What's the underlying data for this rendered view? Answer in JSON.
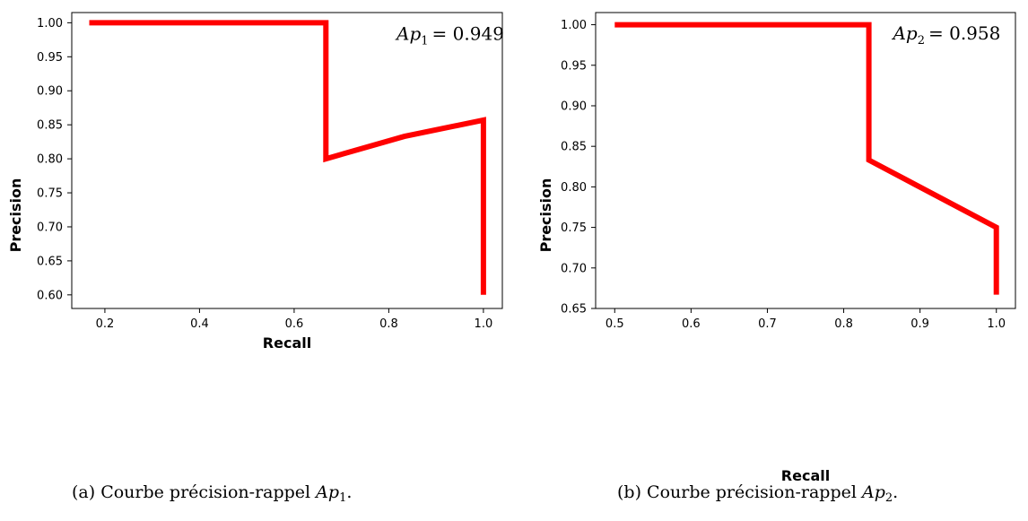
{
  "chart_data": [
    {
      "type": "line",
      "xlabel": "Recall",
      "ylabel": "Precision",
      "xlim": [
        0.13,
        1.04
      ],
      "ylim": [
        0.58,
        1.015
      ],
      "xticks": [
        0.2,
        0.4,
        0.6,
        0.8,
        1.0
      ],
      "yticks": [
        0.6,
        0.65,
        0.7,
        0.75,
        0.8,
        0.85,
        0.9,
        0.95,
        1.0
      ],
      "xtick_labels": [
        "0.2",
        "0.4",
        "0.6",
        "0.8",
        "1.0"
      ],
      "ytick_labels": [
        "0.60",
        "0.65",
        "0.70",
        "0.75",
        "0.80",
        "0.85",
        "0.90",
        "0.95",
        "1.00"
      ],
      "series": [
        {
          "color": "#ff0000",
          "x": [
            0.167,
            0.667,
            0.667,
            0.833,
            1.0,
            1.0
          ],
          "y": [
            1.0,
            1.0,
            0.8,
            0.833,
            0.857,
            0.6
          ]
        }
      ],
      "annotation": {
        "base": "Ap",
        "sub": "1",
        "value": "= 0.949",
        "x": 0.93,
        "y": 0.975
      },
      "caption": {
        "prefix": "(a) Courbe précision-rappel ",
        "base": "Ap",
        "sub": "1",
        "suffix": "."
      },
      "grid": false
    },
    {
      "type": "line",
      "xlabel": "Recall",
      "ylabel": "Precision",
      "xlim": [
        0.475,
        1.025
      ],
      "ylim": [
        0.65,
        1.015
      ],
      "xticks": [
        0.5,
        0.6,
        0.7,
        0.8,
        0.9,
        1.0
      ],
      "yticks": [
        0.65,
        0.7,
        0.75,
        0.8,
        0.85,
        0.9,
        0.95,
        1.0
      ],
      "xtick_labels": [
        "0.5",
        "0.6",
        "0.7",
        "0.8",
        "0.9",
        "1.0"
      ],
      "ytick_labels": [
        "0.65",
        "0.70",
        "0.75",
        "0.80",
        "0.85",
        "0.90",
        "0.95",
        "1.00"
      ],
      "series": [
        {
          "color": "#ff0000",
          "x": [
            0.5,
            0.833,
            0.833,
            1.0,
            1.0
          ],
          "y": [
            1.0,
            1.0,
            0.833,
            0.75,
            0.667
          ]
        }
      ],
      "annotation": {
        "base": "Ap",
        "sub": "2",
        "value": "= 0.958",
        "x": 0.935,
        "y": 0.982
      },
      "caption": {
        "prefix": "(b) Courbe précision-rappel ",
        "base": "Ap",
        "sub": "2",
        "suffix": "."
      },
      "grid": false
    }
  ]
}
